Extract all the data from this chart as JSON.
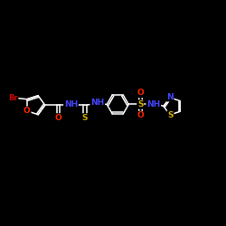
{
  "background_color": "#000000",
  "bond_color": "#ffffff",
  "atom_colors": {
    "Br": "#cc0000",
    "O": "#ff2200",
    "N": "#4444ff",
    "S": "#ccaa00",
    "C": "#ffffff"
  },
  "figsize": [
    2.5,
    2.5
  ],
  "dpi": 100,
  "xlim": [
    0,
    10
  ],
  "ylim": [
    0,
    10
  ]
}
